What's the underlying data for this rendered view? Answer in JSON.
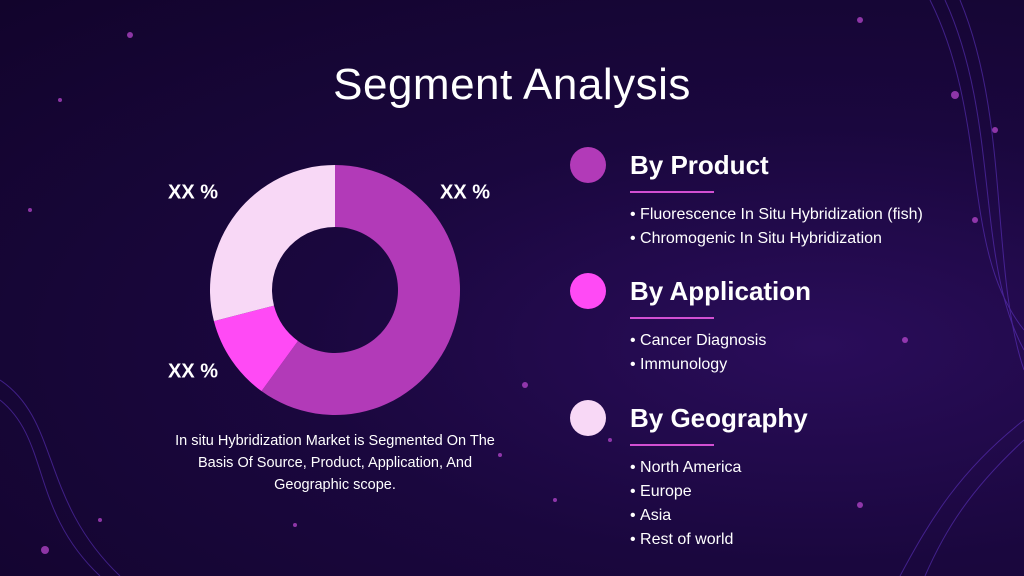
{
  "slide": {
    "title": "Segment Analysis",
    "caption": "In situ Hybridization Market is Segmented On The Basis Of Source, Product, Application, And Geographic scope.",
    "segments": [
      {
        "heading": "By Product",
        "color": "#b23ab8",
        "items": [
          "Fluorescence In Situ Hybridization (fish)",
          "Chromogenic In Situ Hybridization"
        ]
      },
      {
        "heading": "By Application",
        "color": "#ff4af5",
        "items": [
          "Cancer Diagnosis",
          "Immunology"
        ]
      },
      {
        "heading": "By Geography",
        "color": "#f8d8f6",
        "items": [
          "North America",
          "Europe",
          "Asia",
          "Rest of world"
        ]
      }
    ]
  },
  "chart_data": {
    "type": "pie",
    "values": [
      60,
      11,
      29
    ],
    "colors": [
      "#b23ab8",
      "#ff4af5",
      "#f8d8f6"
    ],
    "annotations": [
      "XX %",
      "XX %",
      "XX %"
    ]
  }
}
